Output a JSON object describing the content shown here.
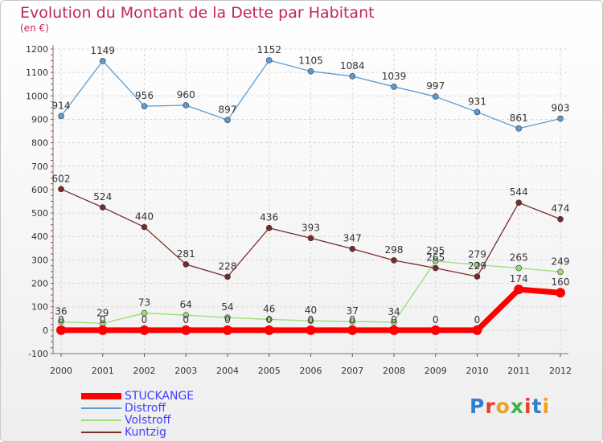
{
  "header": {
    "title": "Evolution du Montant de la Dette par Habitant",
    "subtitle": "(en €)"
  },
  "logo": {
    "text": "Proxiti",
    "colors": [
      "#2e7fd1",
      "#e8402a",
      "#f2a020",
      "#3fae49",
      "#e8402a",
      "#2e7fd1",
      "#f2a020"
    ]
  },
  "chart_data": {
    "type": "line",
    "categories": [
      "2000",
      "2001",
      "2002",
      "2003",
      "2004",
      "2005",
      "2006",
      "2007",
      "2008",
      "2009",
      "2010",
      "2011",
      "2012"
    ],
    "ylim": [
      -100,
      1200
    ],
    "yticks": [
      -100,
      0,
      100,
      200,
      300,
      400,
      500,
      600,
      700,
      800,
      900,
      1000,
      1100,
      1200
    ],
    "xlabel": "",
    "ylabel": "",
    "grid": true,
    "legend_position": "bottom-left",
    "series": [
      {
        "name": "Distroff",
        "color": "#5b9bd5",
        "values": [
          914,
          1149,
          956,
          960,
          897,
          1152,
          1105,
          1084,
          1039,
          997,
          931,
          861,
          903
        ]
      },
      {
        "name": "Volstroff",
        "color": "#99dd77",
        "values": [
          36,
          29,
          73,
          64,
          54,
          46,
          40,
          37,
          34,
          295,
          279,
          265,
          249
        ]
      },
      {
        "name": "Kuntzig",
        "color": "#7a2a2a",
        "values": [
          602,
          524,
          440,
          281,
          228,
          436,
          393,
          347,
          298,
          265,
          229,
          544,
          474
        ]
      },
      {
        "name": "STUCKANGE",
        "color": "#ff0000",
        "values": [
          0,
          0,
          0,
          0,
          0,
          0,
          0,
          0,
          0,
          0,
          0,
          174,
          160
        ]
      }
    ],
    "legend_order": [
      "STUCKANGE",
      "Distroff",
      "Volstroff",
      "Kuntzig"
    ]
  }
}
